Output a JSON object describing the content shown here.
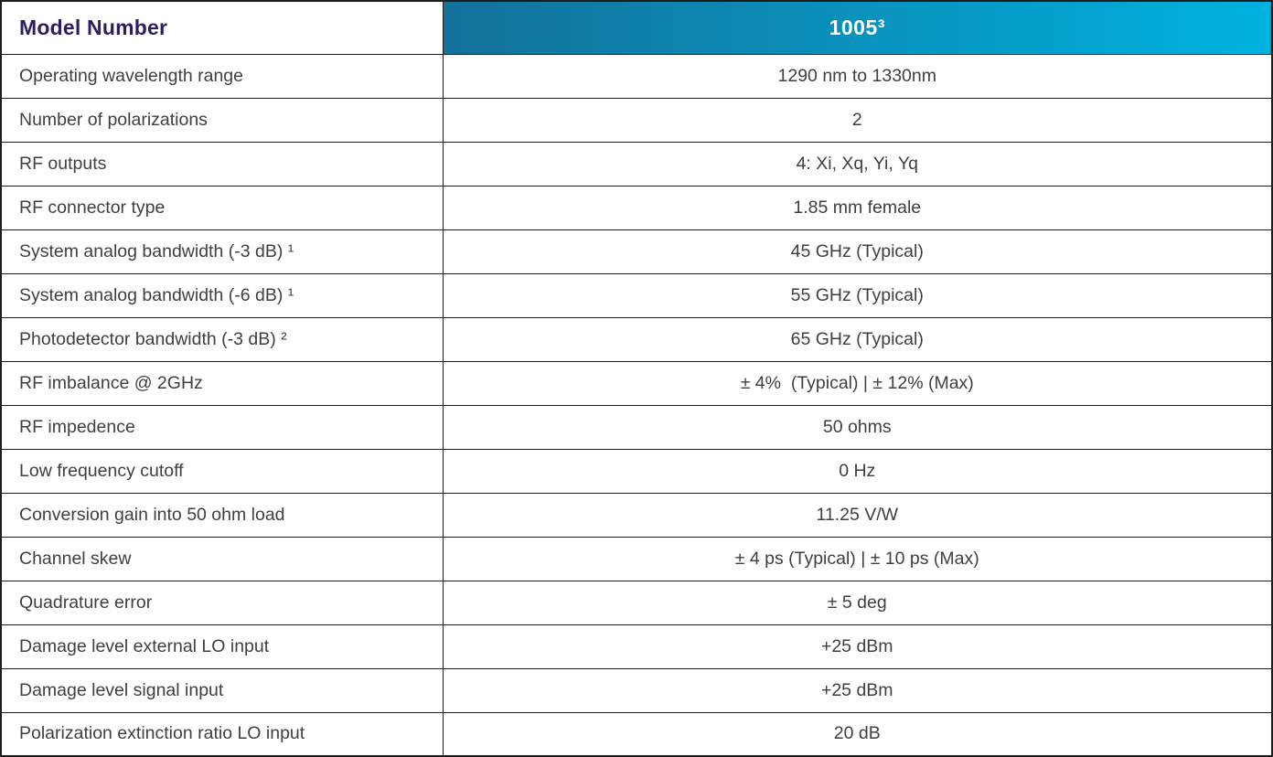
{
  "header": {
    "label": "Model Number",
    "model": "1005³"
  },
  "rows": [
    {
      "label": "Operating wavelength range",
      "value": "1290 nm to 1330nm"
    },
    {
      "label": "Number of polarizations",
      "value": "2"
    },
    {
      "label": "RF outputs",
      "value": "4: Xi, Xq, Yi, Yq"
    },
    {
      "label": "RF connector type",
      "value": "1.85 mm female"
    },
    {
      "label": "System analog bandwidth (-3 dB) ¹",
      "value": "45 GHz (Typical)"
    },
    {
      "label": "System analog bandwidth (-6 dB) ¹",
      "value": "55 GHz (Typical)"
    },
    {
      "label": "Photodetector bandwidth (-3 dB) ²",
      "value": "65 GHz (Typical)"
    },
    {
      "label": "RF imbalance @ 2GHz",
      "value": "± 4%  (Typical) | ± 12% (Max)"
    },
    {
      "label": "RF impedence",
      "value": "50 ohms"
    },
    {
      "label": "Low frequency cutoff",
      "value": "0 Hz"
    },
    {
      "label": "Conversion gain into 50 ohm load",
      "value": "11.25 V/W"
    },
    {
      "label": "Channel skew",
      "value": "± 4 ps (Typical) | ± 10 ps (Max)"
    },
    {
      "label": "Quadrature error",
      "value": "± 5 deg"
    },
    {
      "label": "Damage level external LO input",
      "value": "+25 dBm"
    },
    {
      "label": "Damage level signal input",
      "value": "+25 dBm"
    },
    {
      "label": "Polarization extinction ratio LO input",
      "value": "20 dB"
    }
  ],
  "colors": {
    "header_label": "#301c5e",
    "gradient_start": "#13719a",
    "gradient_end": "#00b2e0",
    "header_value_text": "#ffffff",
    "body_text": "#3f3f3f",
    "border": "#1c1c1c"
  }
}
